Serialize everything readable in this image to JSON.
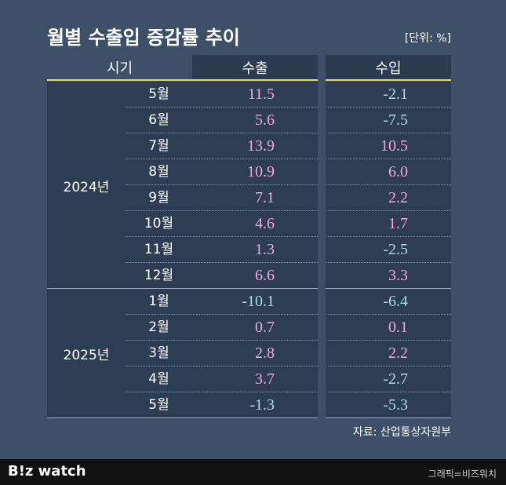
{
  "header": {
    "title": "월별 수출입 증감률 추이",
    "unit": "[단위: %]"
  },
  "table": {
    "columns": [
      "시기",
      "수출",
      "수입"
    ],
    "groups": [
      {
        "year": "2024년",
        "rows": [
          [
            "5월",
            "11.5",
            "-2.1"
          ],
          [
            "6월",
            "5.6",
            "-7.5"
          ],
          [
            "7월",
            "13.9",
            "10.5"
          ],
          [
            "8월",
            "10.9",
            "6.0"
          ],
          [
            "9월",
            "7.1",
            "2.2"
          ],
          [
            "10월",
            "4.6",
            "1.7"
          ],
          [
            "11월",
            "1.3",
            "-2.5"
          ],
          [
            "12월",
            "6.6",
            "3.3"
          ]
        ]
      },
      {
        "year": "2025년",
        "rows": [
          [
            "1월",
            "-10.1",
            "-6.4"
          ],
          [
            "2월",
            "0.7",
            "0.1"
          ],
          [
            "3월",
            "2.8",
            "2.2"
          ],
          [
            "4월",
            "3.7",
            "-2.7"
          ],
          [
            "5월",
            "-1.3",
            "-5.3"
          ]
        ]
      }
    ]
  },
  "source": "자료: 산업통상자원부",
  "footer": {
    "logo": "B!z watch",
    "credit": "그래픽=비즈워치"
  }
}
